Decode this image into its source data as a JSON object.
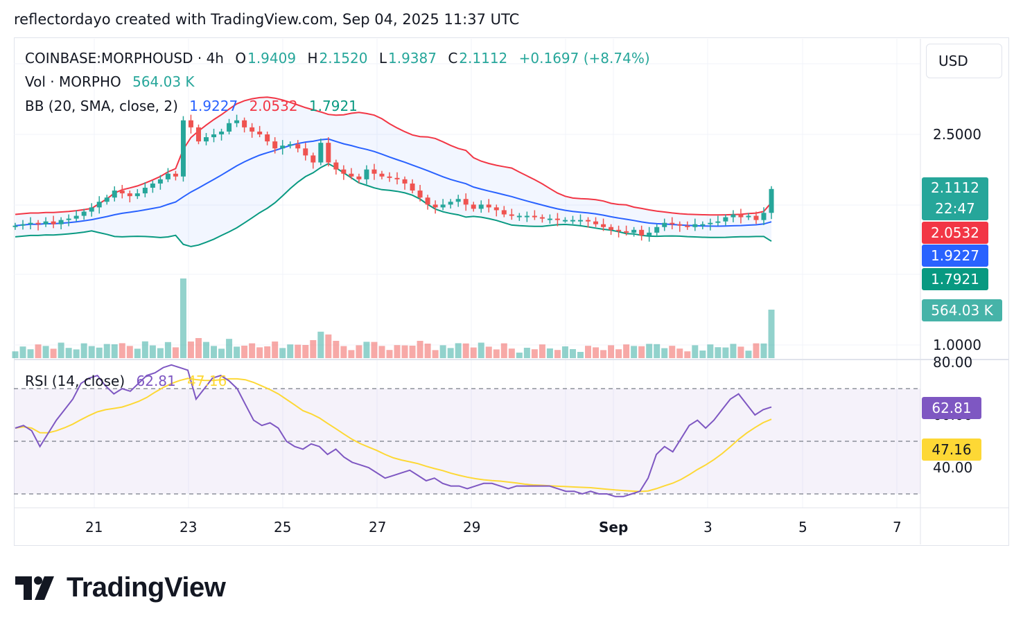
{
  "header": {
    "credit": "reflectordayo created with TradingView.com, Sep 04, 2025 11:37 UTC"
  },
  "legend": {
    "symbol": "COINBASE:MORPHOUSD · 4h",
    "o_label": "O",
    "o_value": "1.9409",
    "h_label": "H",
    "h_value": "2.1520",
    "l_label": "L",
    "l_value": "1.9387",
    "c_label": "C",
    "c_value": "2.1112",
    "change": "+0.1697 (+8.74%)",
    "vol_label": "Vol · MORPHO",
    "vol_value": "564.03 K",
    "bb_label": "BB (20, SMA, close, 2)",
    "bb_basis": "1.9227",
    "bb_upper": "2.0532",
    "bb_lower": "1.7921",
    "rsi_label": "RSI (14, close)",
    "rsi_value": "62.81",
    "rsi_ma": "47.16"
  },
  "currency_button": "USD",
  "price_labels": {
    "close": "2.1112",
    "countdown": "22:47",
    "upper": "2.0532",
    "basis": "1.9227",
    "lower": "1.7921",
    "volume": "564.03 K",
    "rsi": "62.81",
    "rsi_ma": "47.16"
  },
  "price_axis": {
    "ticks": [
      "2.5000",
      "1.0000"
    ]
  },
  "rsi_axis": {
    "ticks": [
      "80.00",
      "60.00",
      "40.00"
    ]
  },
  "time_axis": {
    "ticks": [
      "21",
      "23",
      "25",
      "27",
      "29",
      "Sep",
      "3",
      "5",
      "7"
    ]
  },
  "brand": {
    "name": "TradingView"
  },
  "colors": {
    "up": "#26a69a",
    "down": "#ef5350",
    "bb_upper": "#f23645",
    "bb_basis": "#2962ff",
    "bb_lower": "#089981",
    "rsi": "#7e57c2",
    "rsi_ma": "#fdd835",
    "grid": "#f0f3fa"
  },
  "chart_data": {
    "type": "candlestick",
    "interval": "4h",
    "symbol": "COINBASE:MORPHOUSD",
    "last": {
      "open": 1.9409,
      "high": 2.152,
      "low": 1.9387,
      "close": 2.1112,
      "volume": "564.03 K"
    },
    "closes": [
      1.85,
      1.86,
      1.87,
      1.86,
      1.88,
      1.86,
      1.89,
      1.9,
      1.92,
      1.95,
      1.98,
      2.02,
      2.05,
      2.1,
      2.08,
      2.06,
      2.08,
      2.12,
      2.15,
      2.18,
      2.22,
      2.2,
      2.6,
      2.55,
      2.45,
      2.48,
      2.5,
      2.52,
      2.58,
      2.6,
      2.55,
      2.52,
      2.5,
      2.45,
      2.4,
      2.42,
      2.43,
      2.4,
      2.35,
      2.3,
      2.44,
      2.3,
      2.25,
      2.22,
      2.2,
      2.18,
      2.25,
      2.22,
      2.2,
      2.19,
      2.18,
      2.15,
      2.1,
      2.05,
      2.0,
      1.98,
      2.0,
      2.02,
      2.04,
      2.0,
      1.97,
      2.0,
      1.98,
      1.96,
      1.93,
      1.92,
      1.92,
      1.92,
      1.91,
      1.9,
      1.9,
      1.89,
      1.89,
      1.89,
      1.89,
      1.88,
      1.86,
      1.84,
      1.82,
      1.81,
      1.8,
      1.82,
      1.78,
      1.8,
      1.84,
      1.87,
      1.86,
      1.85,
      1.84,
      1.86,
      1.86,
      1.87,
      1.88,
      1.91,
      1.93,
      1.91,
      1.92,
      1.89,
      1.9409,
      2.1112
    ],
    "volume_pattern": "bars under price pane, green/red by candle direction",
    "rsi_closes": [
      55,
      56,
      54,
      48,
      53,
      58,
      62,
      66,
      72,
      74,
      75,
      71,
      68,
      70,
      69,
      72,
      75,
      76,
      78,
      79,
      78,
      77,
      66,
      70,
      74,
      75,
      73,
      70,
      64,
      58,
      56,
      57,
      55,
      50,
      48,
      47,
      49,
      48,
      45,
      47,
      44,
      42,
      41,
      40,
      38,
      36,
      37,
      38,
      39,
      37,
      35,
      36,
      34,
      33,
      33,
      32,
      33,
      34,
      34,
      33,
      32,
      33,
      33,
      33,
      33,
      33,
      32,
      31,
      31,
      30,
      31,
      30,
      30,
      29,
      29,
      30,
      31,
      36,
      45,
      48,
      46,
      51,
      56,
      58,
      55,
      58,
      62,
      66,
      68,
      64,
      60,
      62,
      63
    ],
    "rsi_ma": 47.16,
    "rsi_levels": [
      70,
      50,
      30
    ],
    "bollinger": {
      "period": 20,
      "type": "SMA",
      "mult": 2,
      "basis": 1.9227,
      "upper": 2.0532,
      "lower": 1.7921
    }
  }
}
